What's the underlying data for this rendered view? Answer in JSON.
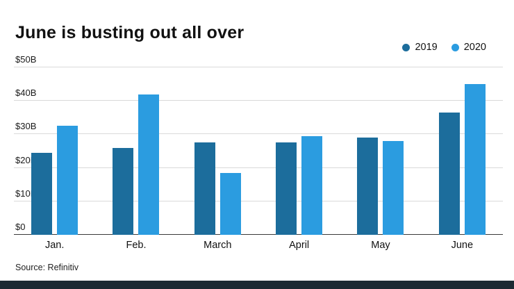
{
  "title": "June is busting out all over",
  "source": "Source: Refinitiv",
  "legend": [
    {
      "label": "2019",
      "color": "#1c6d9c"
    },
    {
      "label": "2020",
      "color": "#2b9ce0"
    }
  ],
  "colors": {
    "series_2019": "#1c6d9c",
    "series_2020": "#2b9ce0",
    "grid": "#d9d9d9",
    "axis": "#3a3a3a",
    "footer_bar": "#1b2a33",
    "text": "#111111"
  },
  "chart_data": {
    "type": "bar",
    "title": "June is busting out all over",
    "categories": [
      "Jan.",
      "Feb.",
      "March",
      "April",
      "May",
      "June"
    ],
    "series": [
      {
        "name": "2019",
        "color": "#1c6d9c",
        "values": [
          24.5,
          26,
          27.5,
          27.5,
          29,
          36.5
        ]
      },
      {
        "name": "2020",
        "color": "#2b9ce0",
        "values": [
          32.5,
          42,
          18.5,
          29.5,
          28,
          45
        ]
      }
    ],
    "xlabel": "",
    "ylabel": "",
    "ylabel_ticks": [
      "$0",
      "$10B",
      "$20B",
      "$30B",
      "$40B",
      "$50B"
    ],
    "ylim": [
      0,
      50
    ],
    "grid": true,
    "legend_position": "top-right",
    "source": "Source: Refinitiv"
  }
}
